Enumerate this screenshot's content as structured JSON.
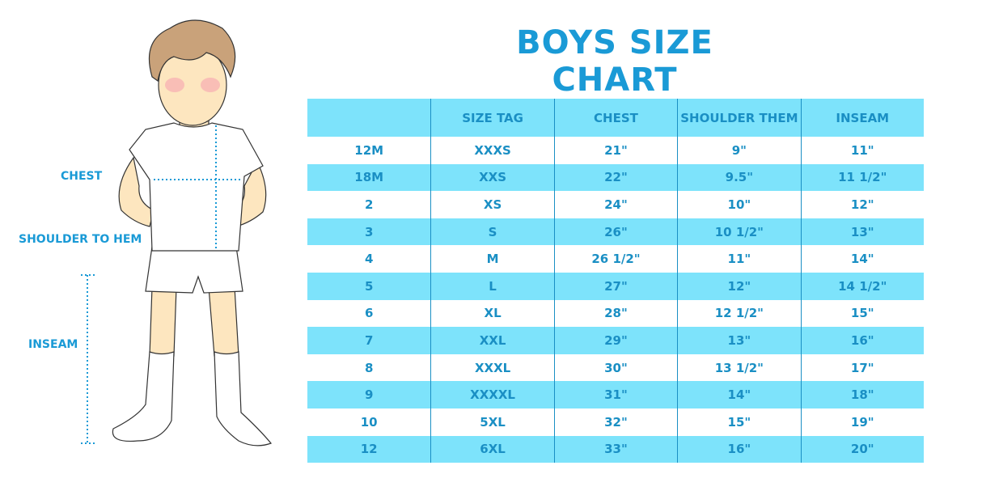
{
  "title": "BOYS SIZE CHART",
  "labels": {
    "chest": "CHEST",
    "shoulder_to_hem": "SHOULDER TO HEM",
    "inseam": "INSEAM"
  },
  "colors": {
    "accent": "#1a9ad6",
    "stripe": "#7de3fb",
    "text": "#1a8fc4"
  },
  "table": {
    "headers": [
      "",
      "SIZE TAG",
      "CHEST",
      "SHOULDER THEM",
      "INSEAM"
    ],
    "rows": [
      [
        "12M",
        "XXXS",
        "21\"",
        "9\"",
        "11\""
      ],
      [
        "18M",
        "XXS",
        "22\"",
        "9.5\"",
        "11 1/2\""
      ],
      [
        "2",
        "XS",
        "24\"",
        "10\"",
        "12\""
      ],
      [
        "3",
        "S",
        "26\"",
        "10 1/2\"",
        "13\""
      ],
      [
        "4",
        "M",
        "26 1/2\"",
        "11\"",
        "14\""
      ],
      [
        "5",
        "L",
        "27\"",
        "12\"",
        "14 1/2\""
      ],
      [
        "6",
        "XL",
        "28\"",
        "12 1/2\"",
        "15\""
      ],
      [
        "7",
        "XXL",
        "29\"",
        "13\"",
        "16\""
      ],
      [
        "8",
        "XXXL",
        "30\"",
        "13 1/2\"",
        "17\""
      ],
      [
        "9",
        "XXXXL",
        "31\"",
        "14\"",
        "18\""
      ],
      [
        "10",
        "5XL",
        "32\"",
        "15\"",
        "19\""
      ],
      [
        "12",
        "6XL",
        "33\"",
        "16\"",
        "20\""
      ]
    ]
  }
}
